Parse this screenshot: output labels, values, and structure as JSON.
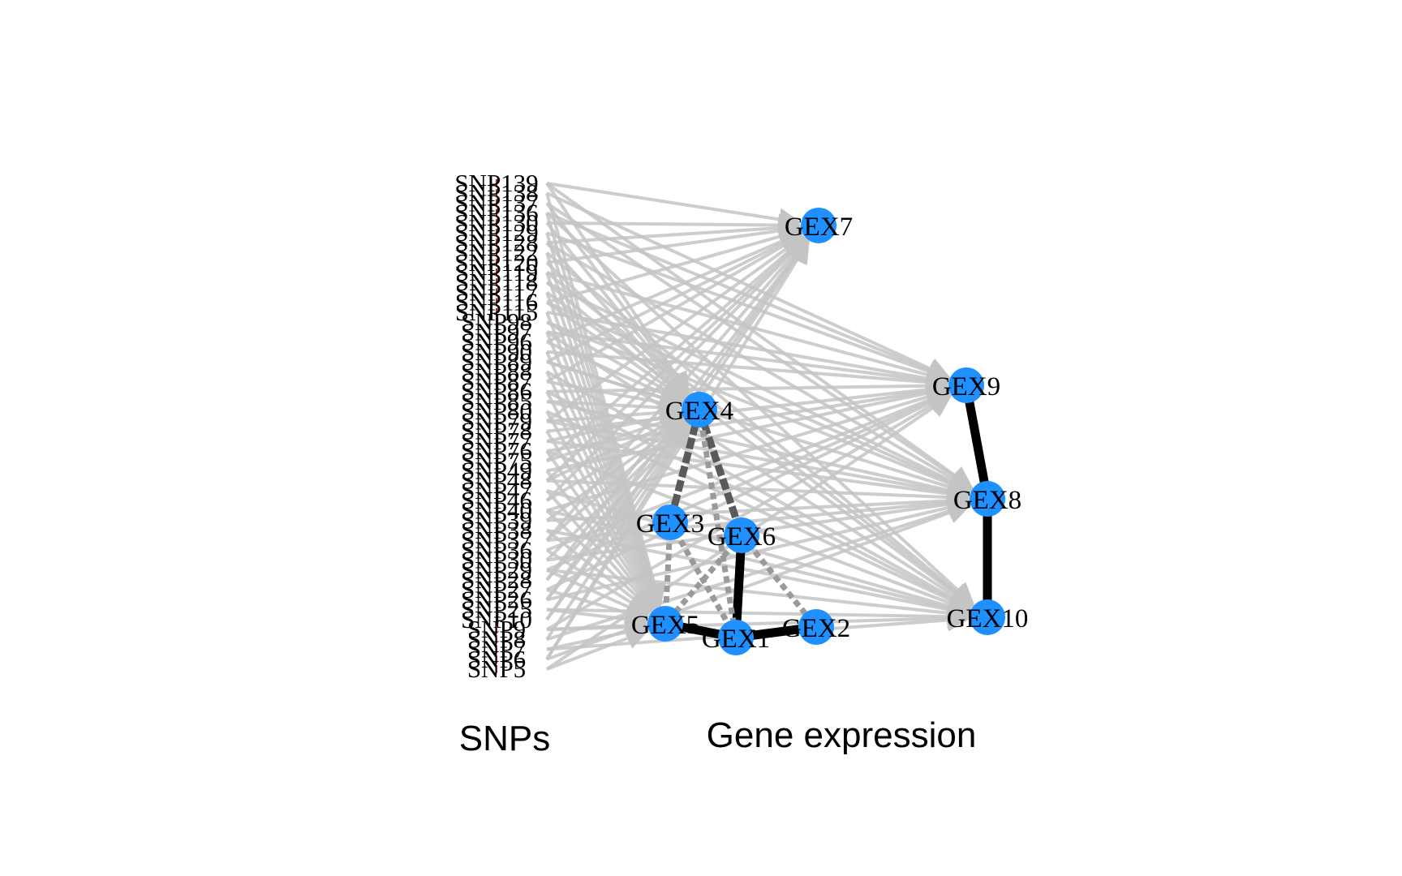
{
  "captions": {
    "snps": "SNPs",
    "genes": "Gene expression"
  },
  "colors": {
    "background": "#ffffff",
    "gene_node": "#1e90ff",
    "snp_marker": "#b22222",
    "snp_gene_edge": "#c4c4c4",
    "strong_edge": "#000000",
    "mid_edge": "#5a5a5a",
    "weak_edge": "#9a9a9a"
  },
  "genes": [
    {
      "id": "GEX1",
      "label": "GEX1"
    },
    {
      "id": "GEX2",
      "label": "GEX2"
    },
    {
      "id": "GEX3",
      "label": "GEX3"
    },
    {
      "id": "GEX4",
      "label": "GEX4"
    },
    {
      "id": "GEX5",
      "label": "GEX5"
    },
    {
      "id": "GEX6",
      "label": "GEX6"
    },
    {
      "id": "GEX7",
      "label": "GEX7"
    },
    {
      "id": "GEX8",
      "label": "GEX8"
    },
    {
      "id": "GEX9",
      "label": "GEX9"
    },
    {
      "id": "GEX10",
      "label": "GEX10"
    }
  ],
  "gene_edges": [
    {
      "from": "GEX9",
      "to": "GEX8",
      "strength": "strong"
    },
    {
      "from": "GEX8",
      "to": "GEX10",
      "strength": "strong"
    },
    {
      "from": "GEX5",
      "to": "GEX1",
      "strength": "strong"
    },
    {
      "from": "GEX1",
      "to": "GEX2",
      "strength": "strong"
    },
    {
      "from": "GEX6",
      "to": "GEX1",
      "strength": "strong"
    },
    {
      "from": "GEX4",
      "to": "GEX6",
      "strength": "mid"
    },
    {
      "from": "GEX4",
      "to": "GEX3",
      "strength": "mid"
    },
    {
      "from": "GEX3",
      "to": "GEX5",
      "strength": "weak"
    },
    {
      "from": "GEX3",
      "to": "GEX1",
      "strength": "weak"
    },
    {
      "from": "GEX6",
      "to": "GEX5",
      "strength": "weak"
    },
    {
      "from": "GEX6",
      "to": "GEX2",
      "strength": "weak"
    },
    {
      "from": "GEX4",
      "to": "GEX1",
      "strength": "weak"
    }
  ],
  "snps": [
    "SNP139",
    "SNP138",
    "SNP137",
    "SNP136",
    "SNP130",
    "SNP129",
    "SNP128",
    "SNP122",
    "SNP120",
    "SNP119",
    "SNP118",
    "SNP117",
    "SNP116",
    "SNP115",
    "SNP98",
    "SNP97",
    "SNP96",
    "SNP90",
    "SNP89",
    "SNP88",
    "SNP87",
    "SNP86",
    "SNP85",
    "SNP80",
    "SNP79",
    "SNP78",
    "SNP77",
    "SNP76",
    "SNP75",
    "SNP49",
    "SNP48",
    "SNP47",
    "SNP46",
    "SNP40",
    "SNP39",
    "SNP38",
    "SNP37",
    "SNP36",
    "SNP30",
    "SNP29",
    "SNP28",
    "SNP27",
    "SNP26",
    "SNP25",
    "SNP10",
    "SNP9",
    "SNP8",
    "SNP7",
    "SNP6",
    "SNP5"
  ]
}
